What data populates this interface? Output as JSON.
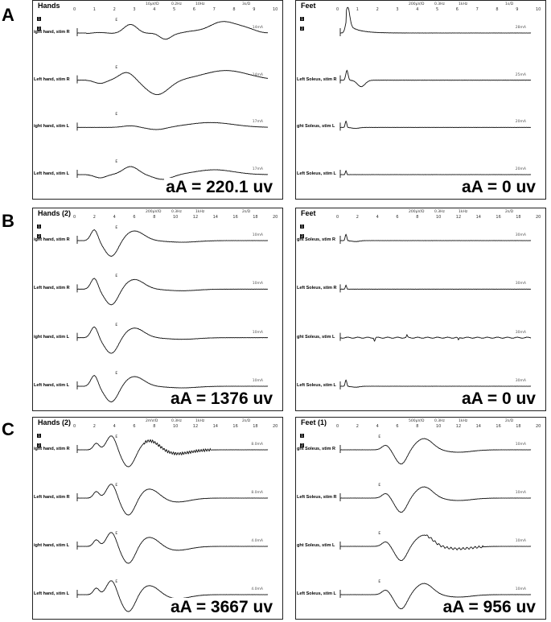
{
  "row_labels": [
    "A",
    "B",
    "C"
  ],
  "panels": [
    {
      "id": "a-hands",
      "title": "Hands",
      "settings": [
        "10μV/D",
        "0.2Hz",
        "10Hz",
        "3s/D"
      ],
      "ticks": [
        "0",
        "1",
        "2",
        "3",
        "4",
        "5",
        "6",
        "7",
        "8",
        "9",
        "10"
      ],
      "aa_label": "aA = 220.1 uv",
      "mini_boxes": [
        "1",
        "2"
      ],
      "traces": [
        {
          "label": "ight hand, stim R",
          "amp": "14mA",
          "marker": "E",
          "shape": "ssr_small_r"
        },
        {
          "label": "Left hand, stim R",
          "amp": "14mA",
          "marker": "E",
          "shape": "ssr_big"
        },
        {
          "label": "ight hand, stim L",
          "amp": "17mA",
          "marker": "E",
          "shape": "ssr_flat"
        },
        {
          "label": "Left hand, stim L",
          "amp": "17mA",
          "marker": "E",
          "shape": "ssr_med"
        }
      ]
    },
    {
      "id": "a-feet",
      "title": "Feet",
      "settings": [
        "200μV/D",
        "0.3Hz",
        "1kHz",
        "1s/D"
      ],
      "ticks": [
        "0",
        "1",
        "2",
        "3",
        "4",
        "5",
        "6",
        "7",
        "8",
        "9",
        "10"
      ],
      "aa_label": "aA = 0 uv",
      "mini_boxes": [
        "1",
        "2"
      ],
      "traces": [
        {
          "label": "",
          "amp": "28mA",
          "marker": "",
          "shape": "artifact_big"
        },
        {
          "label": "Left Soleus, stim R",
          "amp": "25mA",
          "marker": "",
          "shape": "artifact_med"
        },
        {
          "label": "ght Soleus, stim L",
          "amp": "20mA",
          "marker": "",
          "shape": "artifact_small"
        },
        {
          "label": "Left Soleus, stim L",
          "amp": "20mA",
          "marker": "",
          "shape": "artifact_tiny"
        }
      ]
    },
    {
      "id": "b-hands",
      "title": "Hands (2)",
      "settings": [
        "200μV/D",
        "0.3Hz",
        "1kHz",
        "2s/D"
      ],
      "ticks": [
        "0",
        "2",
        "4",
        "6",
        "8",
        "10",
        "12",
        "14",
        "16",
        "18",
        "20"
      ],
      "aa_label": "aA = 1376 uv",
      "mini_boxes": [
        "1",
        "2"
      ],
      "traces": [
        {
          "label": "ight hand, stim R",
          "amp": "10mA",
          "marker": "E",
          "shape": "ssr_strong"
        },
        {
          "label": "Left hand, stim R",
          "amp": "10mA",
          "marker": "E",
          "shape": "ssr_strong"
        },
        {
          "label": "ight hand, stim L",
          "amp": "10mA",
          "marker": "E",
          "shape": "ssr_strong"
        },
        {
          "label": "Left hand, stim L",
          "amp": "10mA",
          "marker": "E",
          "shape": "ssr_strong"
        }
      ]
    },
    {
      "id": "b-feet",
      "title": "Feet",
      "settings": [
        "200μV/D",
        "0.3Hz",
        "1kHz",
        "2s/D"
      ],
      "ticks": [
        "0",
        "2",
        "4",
        "6",
        "8",
        "10",
        "12",
        "14",
        "16",
        "18",
        "20"
      ],
      "aa_label": "aA = 0 uv",
      "mini_boxes": [
        "1",
        "2"
      ],
      "traces": [
        {
          "label": "ght Soleus, stim R",
          "amp": "30mA",
          "marker": "",
          "shape": "artifact_small"
        },
        {
          "label": "Left Soleus, stim R",
          "amp": "30mA",
          "marker": "",
          "shape": "artifact_tiny"
        },
        {
          "label": "ght Soleus, stim L",
          "amp": "30mA",
          "marker": "",
          "shape": "noisy_flat"
        },
        {
          "label": "Left Soleus, stim L",
          "amp": "30mA",
          "marker": "",
          "shape": "artifact_small"
        }
      ]
    },
    {
      "id": "c-hands",
      "title": "Hands (2)",
      "settings": [
        "2mV/D",
        "0.3Hz",
        "1kHz",
        "2s/D"
      ],
      "ticks": [
        "0",
        "2",
        "4",
        "6",
        "8",
        "10",
        "12",
        "14",
        "16",
        "18",
        "20"
      ],
      "aa_label": "aA = 3667 uv",
      "mini_boxes": [
        "1",
        "2"
      ],
      "traces": [
        {
          "label": "ight hand, stim R",
          "amp": "8.0mA",
          "marker": "E",
          "shape": "ssr_huge_ripple"
        },
        {
          "label": "Left hand, stim R",
          "amp": "8.0mA",
          "marker": "E",
          "shape": "ssr_huge"
        },
        {
          "label": "ight hand, stim L",
          "amp": "4.0mA",
          "marker": "E",
          "shape": "ssr_huge"
        },
        {
          "label": "Left hand, stim L",
          "amp": "4.0mA",
          "marker": "E",
          "shape": "ssr_huge"
        }
      ]
    },
    {
      "id": "c-feet",
      "title": "Feet (1)",
      "settings": [
        "500μV/D",
        "0.3Hz",
        "1kHz",
        "2s/D"
      ],
      "ticks": [
        "0",
        "2",
        "4",
        "6",
        "8",
        "10",
        "12",
        "14",
        "16",
        "18",
        "20"
      ],
      "aa_label": "aA = 956 uv",
      "mini_boxes": [
        "1",
        "2"
      ],
      "traces": [
        {
          "label": "ght Soleus, stim R",
          "amp": "10mA",
          "marker": "E",
          "shape": "ssr_late"
        },
        {
          "label": "Left Soleus, stim R",
          "amp": "10mA",
          "marker": "E",
          "shape": "ssr_late"
        },
        {
          "label": "ght Soleus, stim L",
          "amp": "10mA",
          "marker": "E",
          "shape": "ssr_late_noisy"
        },
        {
          "label": "Left Soleus, stim L",
          "amp": "10mA",
          "marker": "E",
          "shape": "ssr_late"
        }
      ]
    }
  ]
}
